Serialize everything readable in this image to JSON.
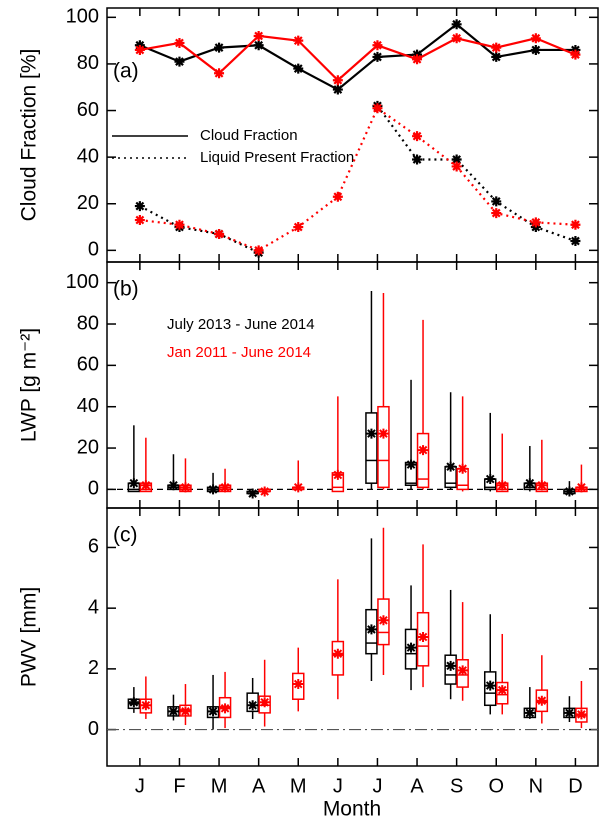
{
  "chart_data": [
    {
      "type": "line",
      "panel_label": "(a)",
      "ylabel": "Cloud Fraction [%]",
      "ylim": [
        -5,
        104
      ],
      "yticks": [
        0,
        20,
        40,
        60,
        80,
        100
      ],
      "series": [
        {
          "name": "Cloud Fraction",
          "color": "#000000",
          "line_style": "solid",
          "values": [
            88,
            81,
            87,
            88,
            78,
            69,
            83,
            84,
            97,
            83,
            86,
            86
          ]
        },
        {
          "color": "#ff0000",
          "line_style": "solid",
          "values": [
            86,
            89,
            76,
            92,
            90,
            73,
            88,
            82,
            91,
            87,
            91,
            84
          ]
        },
        {
          "name": "Liquid Present Fraction",
          "color": "#000000",
          "line_style": "dotted",
          "values": [
            19,
            10,
            7,
            -1,
            null,
            null,
            62,
            39,
            39,
            21,
            10,
            4
          ]
        },
        {
          "color": "#ff0000",
          "line_style": "dotted",
          "values": [
            13,
            11,
            7,
            0,
            10,
            23,
            61,
            49,
            36,
            16,
            12,
            11
          ]
        }
      ]
    },
    {
      "type": "box",
      "panel_label": "(b)",
      "ylabel": "LWP [g m⁻²]",
      "ylim": [
        -9,
        110
      ],
      "yticks": [
        0,
        20,
        40,
        60,
        80,
        100
      ],
      "zero_line": "dashed",
      "series": [
        {
          "name": "July 2013 - June 2014",
          "color": "#000000",
          "min": [
            -1,
            0,
            -2,
            -3,
            null,
            null,
            0,
            0,
            0,
            -1,
            -1,
            -2
          ],
          "q1": [
            -1,
            0,
            -1,
            -2,
            null,
            null,
            3,
            2,
            1,
            0,
            0,
            -2
          ],
          "median": [
            0,
            1,
            0,
            -1,
            null,
            null,
            14,
            3,
            3,
            1,
            1,
            -1
          ],
          "q3": [
            3,
            2,
            1,
            -1,
            null,
            null,
            37,
            13,
            11,
            5,
            3,
            0
          ],
          "max": [
            31,
            17,
            8,
            0,
            null,
            null,
            96,
            53,
            47,
            37,
            21,
            4
          ],
          "mean": [
            3,
            2,
            0,
            -2,
            null,
            null,
            27,
            12,
            11,
            5,
            3,
            -1
          ]
        },
        {
          "name": "Jan 2011 - June 2014",
          "color": "#ff0000",
          "min": [
            -1,
            -1,
            -1,
            -2,
            -1,
            -1,
            0,
            0,
            -1,
            -1,
            -1,
            -1
          ],
          "q1": [
            -1,
            -1,
            -1,
            -1,
            0,
            -1,
            1,
            1,
            0,
            -1,
            -1,
            -1
          ],
          "median": [
            0,
            0,
            0,
            -1,
            0,
            1,
            14,
            5,
            2,
            0,
            0,
            0
          ],
          "q3": [
            3,
            2,
            2,
            0,
            1,
            8,
            40,
            27,
            10,
            3,
            3,
            1
          ],
          "max": [
            25,
            15,
            10,
            0,
            14,
            45,
            95,
            82,
            45,
            27,
            24,
            12
          ],
          "mean": [
            2,
            1,
            1,
            -1,
            1,
            7,
            27,
            19,
            10,
            2,
            2,
            1
          ]
        }
      ]
    },
    {
      "type": "box",
      "panel_label": "(c)",
      "ylabel": "PWV [mm]",
      "xlabel": "Month",
      "categories": [
        "J",
        "F",
        "M",
        "A",
        "M",
        "J",
        "J",
        "A",
        "S",
        "O",
        "N",
        "D"
      ],
      "ylim": [
        -1.2,
        7.3
      ],
      "yticks": [
        0,
        2,
        4,
        6
      ],
      "zero_line": "dashdot",
      "series": [
        {
          "color": "#000000",
          "min": [
            0.55,
            0.3,
            0,
            0.35,
            null,
            null,
            1.6,
            1.3,
            1.0,
            0.5,
            0.35,
            0.25
          ],
          "q1": [
            0.7,
            0.45,
            0.4,
            0.6,
            null,
            null,
            2.5,
            2.0,
            1.5,
            0.8,
            0.4,
            0.4
          ],
          "median": [
            0.85,
            0.6,
            0.6,
            0.8,
            null,
            null,
            2.85,
            2.5,
            1.8,
            1.2,
            0.55,
            0.55
          ],
          "q3": [
            1.0,
            0.75,
            0.75,
            1.2,
            null,
            null,
            3.95,
            3.3,
            2.45,
            1.9,
            0.7,
            0.7
          ],
          "max": [
            1.4,
            1.15,
            1.8,
            1.7,
            null,
            null,
            6.3,
            4.75,
            4.6,
            3.8,
            1.4,
            1.1
          ],
          "mean": [
            0.9,
            0.6,
            0.6,
            0.8,
            null,
            null,
            3.3,
            2.7,
            2.1,
            1.45,
            0.55,
            0.55
          ]
        },
        {
          "color": "#ff0000",
          "min": [
            0.35,
            0.15,
            0.05,
            0.1,
            0.6,
            1.0,
            1.8,
            1.4,
            0.95,
            0.5,
            0.2,
            0.05
          ],
          "q1": [
            0.55,
            0.45,
            0.4,
            0.55,
            1.0,
            1.8,
            2.8,
            2.1,
            1.4,
            0.85,
            0.6,
            0.25
          ],
          "median": [
            0.8,
            0.65,
            0.75,
            0.8,
            1.5,
            2.45,
            3.2,
            2.75,
            1.8,
            1.15,
            0.9,
            0.45
          ],
          "q3": [
            1.0,
            0.8,
            1.05,
            1.1,
            1.85,
            2.9,
            4.3,
            3.85,
            2.3,
            1.55,
            1.3,
            0.7
          ],
          "max": [
            1.75,
            1.5,
            1.9,
            2.3,
            2.7,
            4.95,
            6.65,
            6.1,
            4.2,
            3.15,
            2.45,
            1.6
          ],
          "mean": [
            0.8,
            0.6,
            0.7,
            0.9,
            1.5,
            2.5,
            3.6,
            3.05,
            1.95,
            1.3,
            0.95,
            0.5
          ]
        }
      ]
    }
  ]
}
